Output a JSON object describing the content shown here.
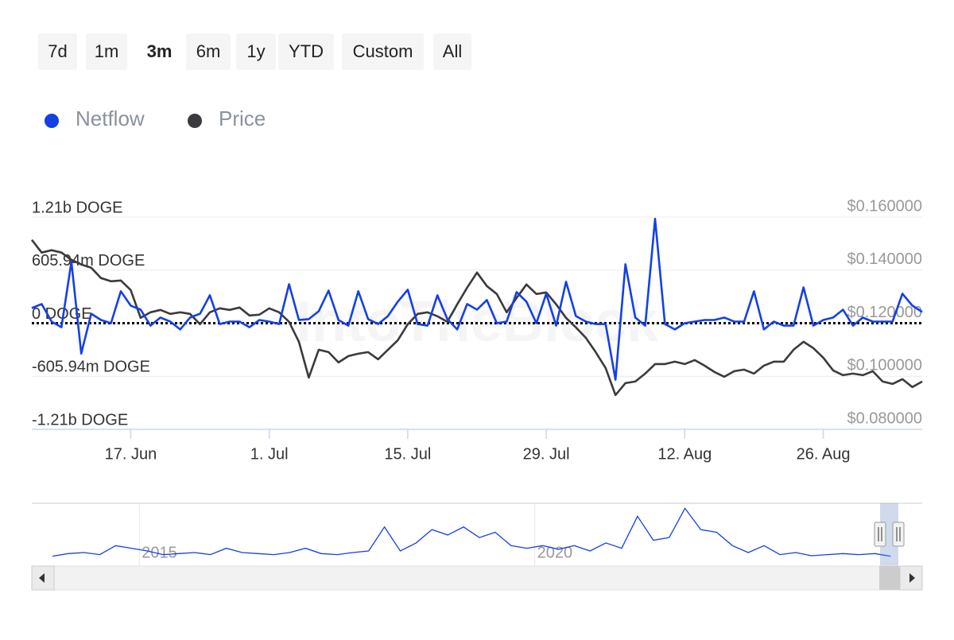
{
  "range_buttons": {
    "options": [
      "7d",
      "1m",
      "3m",
      "6m",
      "1y",
      "YTD",
      "Custom",
      "All"
    ],
    "selected": 2
  },
  "watermark": "IntoTheBlock",
  "chart_data": {
    "type": "line",
    "x": [
      "06-07",
      "06-08",
      "06-09",
      "06-10",
      "06-11",
      "06-12",
      "06-13",
      "06-14",
      "06-15",
      "06-16",
      "06-17",
      "06-18",
      "06-19",
      "06-20",
      "06-21",
      "06-22",
      "06-23",
      "06-24",
      "06-25",
      "06-26",
      "06-27",
      "06-28",
      "06-29",
      "06-30",
      "07-01",
      "07-02",
      "07-03",
      "07-04",
      "07-05",
      "07-06",
      "07-07",
      "07-08",
      "07-09",
      "07-10",
      "07-11",
      "07-12",
      "07-13",
      "07-14",
      "07-15",
      "07-16",
      "07-17",
      "07-18",
      "07-19",
      "07-20",
      "07-21",
      "07-22",
      "07-23",
      "07-24",
      "07-25",
      "07-26",
      "07-27",
      "07-28",
      "07-29",
      "07-30",
      "07-31",
      "08-01",
      "08-02",
      "08-03",
      "08-04",
      "08-05",
      "08-06",
      "08-07",
      "08-08",
      "08-09",
      "08-10",
      "08-11",
      "08-12",
      "08-13",
      "08-14",
      "08-15",
      "08-16",
      "08-17",
      "08-18",
      "08-19",
      "08-20",
      "08-21",
      "08-22",
      "08-23",
      "08-24",
      "08-25",
      "08-26",
      "08-27",
      "08-28",
      "08-29",
      "08-30",
      "08-31",
      "09-01",
      "09-02",
      "09-03",
      "09-04",
      "09-05"
    ],
    "xlim": [
      "06-07",
      "09-05"
    ],
    "xticks": [
      {
        "value": "06-17",
        "label": "17. Jun"
      },
      {
        "value": "07-01",
        "label": "1. Jul"
      },
      {
        "value": "07-15",
        "label": "15. Jul"
      },
      {
        "value": "07-29",
        "label": "29. Jul"
      },
      {
        "value": "08-12",
        "label": "12. Aug"
      },
      {
        "value": "08-26",
        "label": "26. Aug"
      }
    ],
    "ylim": [
      -1210000000,
      1210000000
    ],
    "yticks": [
      {
        "value": 1210000000,
        "label": "1.21b DOGE"
      },
      {
        "value": 605940000,
        "label": "605.94m DOGE"
      },
      {
        "value": 0,
        "label": "0 DOGE"
      },
      {
        "value": -605940000,
        "label": "-605.94m DOGE"
      },
      {
        "value": -1210000000,
        "label": "-1.21b DOGE"
      }
    ],
    "y2lim": [
      0.08,
      0.16
    ],
    "y2ticks": [
      {
        "value": 0.16,
        "label": "$0.160000"
      },
      {
        "value": 0.14,
        "label": "$0.140000"
      },
      {
        "value": 0.12,
        "label": "$0.120000"
      },
      {
        "value": 0.1,
        "label": "$0.100000"
      },
      {
        "value": 0.08,
        "label": "$0.080000"
      }
    ],
    "series": [
      {
        "name": "Netflow",
        "color": "#1440e6",
        "values": [
          172000000,
          218000000,
          18000000,
          -46000000,
          700000000,
          -346000000,
          108000000,
          36000000,
          0,
          364000000,
          200000000,
          154000000,
          -28000000,
          64000000,
          18000000,
          -72000000,
          64000000,
          108000000,
          318000000,
          -10000000,
          18000000,
          18000000,
          -46000000,
          36000000,
          18000000,
          -10000000,
          444000000,
          36000000,
          46000000,
          136000000,
          372000000,
          36000000,
          -28000000,
          364000000,
          46000000,
          -10000000,
          82000000,
          246000000,
          382000000,
          -10000000,
          -28000000,
          318000000,
          46000000,
          -72000000,
          218000000,
          154000000,
          264000000,
          0,
          18000000,
          354000000,
          246000000,
          0,
          336000000,
          -28000000,
          472000000,
          82000000,
          18000000,
          -10000000,
          -10000000,
          -644000000,
          672000000,
          64000000,
          -28000000,
          1190000000,
          -10000000,
          -72000000,
          0,
          18000000,
          36000000,
          36000000,
          64000000,
          18000000,
          18000000,
          364000000,
          -72000000,
          18000000,
          -28000000,
          -28000000,
          408000000,
          -28000000,
          36000000,
          64000000,
          154000000,
          -28000000,
          64000000,
          18000000,
          18000000,
          18000000,
          336000000,
          200000000,
          128000000
        ]
      },
      {
        "name": "Price",
        "color": "#3a3b3e",
        "axis": "y2",
        "values": [
          0.1514,
          0.1466,
          0.1475,
          0.1466,
          0.1439,
          0.1421,
          0.1409,
          0.137,
          0.1358,
          0.1361,
          0.1325,
          0.122,
          0.1241,
          0.125,
          0.1235,
          0.1241,
          0.1235,
          0.1196,
          0.1241,
          0.1256,
          0.125,
          0.1259,
          0.1229,
          0.1232,
          0.1256,
          0.1241,
          0.1205,
          0.113,
          0.0995,
          0.11,
          0.1091,
          0.1052,
          0.1076,
          0.1085,
          0.1091,
          0.1064,
          0.11,
          0.1136,
          0.1196,
          0.1235,
          0.1241,
          0.1226,
          0.1205,
          0.1271,
          0.1334,
          0.1391,
          0.134,
          0.131,
          0.1241,
          0.1295,
          0.1346,
          0.131,
          0.1316,
          0.1271,
          0.122,
          0.1184,
          0.1145,
          0.1091,
          0.1031,
          0.0929,
          0.0974,
          0.098,
          0.101,
          0.1046,
          0.1046,
          0.1055,
          0.1046,
          0.1061,
          0.104,
          0.1016,
          0.0998,
          0.1019,
          0.1025,
          0.101,
          0.104,
          0.1055,
          0.1055,
          0.11,
          0.113,
          0.1106,
          0.107,
          0.1022,
          0.1004,
          0.101,
          0.1004,
          0.1019,
          0.098,
          0.0971,
          0.0989,
          0.0959,
          0.098
        ]
      }
    ],
    "navigator": {
      "color": "#1440e6",
      "xlim": [
        2013.64,
        2024.9
      ],
      "ylim": [
        0,
        100
      ],
      "xticks": [
        {
          "value": 2015,
          "label": "2015"
        },
        {
          "value": 2020,
          "label": "2020"
        }
      ],
      "x": [
        2013.9,
        2014.1,
        2014.3,
        2014.5,
        2014.7,
        2014.9,
        2015.1,
        2015.3,
        2015.5,
        2015.7,
        2015.9,
        2016.1,
        2016.3,
        2016.5,
        2016.7,
        2016.9,
        2017.1,
        2017.3,
        2017.5,
        2017.7,
        2017.9,
        2018.1,
        2018.3,
        2018.5,
        2018.7,
        2018.9,
        2019.1,
        2019.3,
        2019.5,
        2019.7,
        2019.9,
        2020.1,
        2020.3,
        2020.5,
        2020.7,
        2020.9,
        2021.1,
        2021.3,
        2021.5,
        2021.7,
        2021.9,
        2022.1,
        2022.3,
        2022.5,
        2022.7,
        2022.9,
        2023.1,
        2023.3,
        2023.5,
        2023.7,
        2023.9,
        2024.1,
        2024.3,
        2024.5
      ],
      "values": [
        5,
        10,
        12,
        8,
        25,
        20,
        15,
        8,
        10,
        12,
        8,
        20,
        12,
        10,
        8,
        12,
        20,
        10,
        8,
        12,
        15,
        60,
        15,
        30,
        55,
        45,
        60,
        40,
        50,
        25,
        20,
        25,
        18,
        25,
        15,
        30,
        20,
        80,
        35,
        40,
        95,
        55,
        50,
        25,
        12,
        25,
        8,
        12,
        6,
        8,
        10,
        8,
        10,
        5
      ]
    }
  }
}
